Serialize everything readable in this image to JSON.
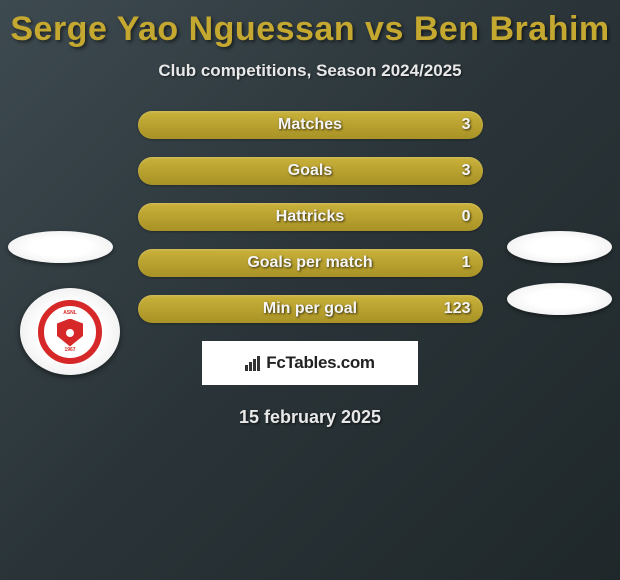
{
  "header": {
    "title": "Serge Yao Nguessan vs Ben Brahim",
    "subtitle": "Club competitions, Season 2024/2025"
  },
  "stats": {
    "rows": [
      {
        "label": "Matches",
        "value": "3"
      },
      {
        "label": "Goals",
        "value": "3"
      },
      {
        "label": "Hattricks",
        "value": "0"
      },
      {
        "label": "Goals per match",
        "value": "1"
      },
      {
        "label": "Min per goal",
        "value": "123"
      }
    ],
    "bar_color_top": "#c9b13a",
    "bar_color_bottom": "#a89225",
    "text_color": "#f5f5f5"
  },
  "ellipses": {
    "color": "#ffffff"
  },
  "club": {
    "ring_color": "#d62828",
    "top_text": "ASNL",
    "year_text": "1967"
  },
  "footer": {
    "brand": "FcTables.com",
    "date": "15 february 2025"
  },
  "colors": {
    "title": "#c5a830",
    "bg_start": "#3d4a50",
    "bg_mid": "#2a3438",
    "bg_end": "#1f272a"
  }
}
